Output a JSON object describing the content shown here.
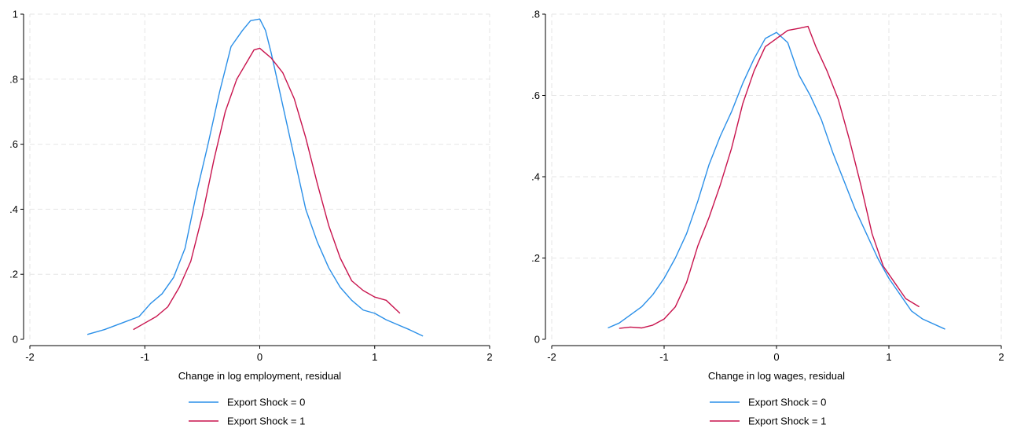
{
  "chart_data": [
    {
      "type": "line",
      "title": "",
      "xlabel": "Change in log employment, residual",
      "ylabel": "",
      "xlim": [
        -2,
        2
      ],
      "ylim": [
        0,
        1
      ],
      "xticks": [
        -2,
        -1,
        0,
        1,
        2
      ],
      "xtick_labels": [
        "-2",
        "-1",
        "0",
        "1",
        "2"
      ],
      "yticks": [
        0,
        0.2,
        0.4,
        0.6,
        0.8,
        1
      ],
      "ytick_labels": [
        "0",
        ".2",
        ".4",
        ".6",
        ".8",
        "1"
      ],
      "grid": true,
      "legend_position": "bottom",
      "series": [
        {
          "name": "Export Shock = 0",
          "color": "#2a8fe8",
          "x": [
            -1.5,
            -1.35,
            -1.2,
            -1.05,
            -0.95,
            -0.85,
            -0.75,
            -0.65,
            -0.55,
            -0.45,
            -0.35,
            -0.25,
            -0.15,
            -0.08,
            0.0,
            0.05,
            0.1,
            0.2,
            0.3,
            0.4,
            0.5,
            0.6,
            0.7,
            0.8,
            0.9,
            1.0,
            1.1,
            1.2,
            1.3,
            1.42
          ],
          "y": [
            0.015,
            0.03,
            0.05,
            0.07,
            0.11,
            0.14,
            0.19,
            0.28,
            0.45,
            0.6,
            0.76,
            0.9,
            0.95,
            0.98,
            0.985,
            0.95,
            0.88,
            0.72,
            0.56,
            0.4,
            0.3,
            0.22,
            0.16,
            0.12,
            0.09,
            0.08,
            0.06,
            0.045,
            0.03,
            0.01
          ]
        },
        {
          "name": "Export Shock = 1",
          "color": "#c8134d",
          "x": [
            -1.1,
            -1.0,
            -0.9,
            -0.8,
            -0.7,
            -0.6,
            -0.5,
            -0.4,
            -0.3,
            -0.2,
            -0.1,
            -0.05,
            0.0,
            0.05,
            0.1,
            0.2,
            0.3,
            0.4,
            0.5,
            0.6,
            0.7,
            0.8,
            0.9,
            1.0,
            1.1,
            1.22
          ],
          "y": [
            0.03,
            0.05,
            0.07,
            0.1,
            0.16,
            0.24,
            0.38,
            0.55,
            0.7,
            0.8,
            0.86,
            0.89,
            0.895,
            0.88,
            0.865,
            0.82,
            0.74,
            0.62,
            0.48,
            0.35,
            0.25,
            0.18,
            0.15,
            0.13,
            0.12,
            0.08
          ]
        }
      ]
    },
    {
      "type": "line",
      "title": "",
      "xlabel": "Change in log wages, residual",
      "ylabel": "",
      "xlim": [
        -2,
        2
      ],
      "ylim": [
        0,
        0.8
      ],
      "xticks": [
        -2,
        -1,
        0,
        1,
        2
      ],
      "xtick_labels": [
        "-2",
        "-1",
        "0",
        "1",
        "2"
      ],
      "yticks": [
        0,
        0.2,
        0.4,
        0.6,
        0.8
      ],
      "ytick_labels": [
        "0",
        ".2",
        ".4",
        ".6",
        ".8"
      ],
      "grid": true,
      "legend_position": "bottom",
      "series": [
        {
          "name": "Export Shock = 0",
          "color": "#2a8fe8",
          "x": [
            -1.5,
            -1.4,
            -1.3,
            -1.2,
            -1.1,
            -1.0,
            -0.9,
            -0.8,
            -0.7,
            -0.6,
            -0.5,
            -0.4,
            -0.3,
            -0.2,
            -0.1,
            0.0,
            0.1,
            0.2,
            0.3,
            0.4,
            0.5,
            0.6,
            0.7,
            0.8,
            0.9,
            1.0,
            1.1,
            1.2,
            1.3,
            1.5
          ],
          "y": [
            0.028,
            0.04,
            0.06,
            0.08,
            0.11,
            0.15,
            0.2,
            0.26,
            0.34,
            0.43,
            0.5,
            0.56,
            0.63,
            0.69,
            0.74,
            0.755,
            0.73,
            0.65,
            0.6,
            0.54,
            0.46,
            0.39,
            0.32,
            0.26,
            0.2,
            0.15,
            0.11,
            0.07,
            0.05,
            0.025
          ]
        },
        {
          "name": "Export Shock = 1",
          "color": "#c8134d",
          "x": [
            -1.4,
            -1.3,
            -1.2,
            -1.1,
            -1.0,
            -0.9,
            -0.8,
            -0.7,
            -0.6,
            -0.5,
            -0.4,
            -0.3,
            -0.2,
            -0.1,
            0.0,
            0.1,
            0.2,
            0.28,
            0.35,
            0.45,
            0.55,
            0.65,
            0.75,
            0.85,
            0.95,
            1.05,
            1.15,
            1.27
          ],
          "y": [
            0.027,
            0.03,
            0.028,
            0.035,
            0.05,
            0.08,
            0.14,
            0.23,
            0.3,
            0.38,
            0.47,
            0.58,
            0.66,
            0.72,
            0.74,
            0.76,
            0.765,
            0.77,
            0.72,
            0.66,
            0.59,
            0.49,
            0.38,
            0.26,
            0.18,
            0.14,
            0.1,
            0.08
          ]
        }
      ]
    }
  ]
}
